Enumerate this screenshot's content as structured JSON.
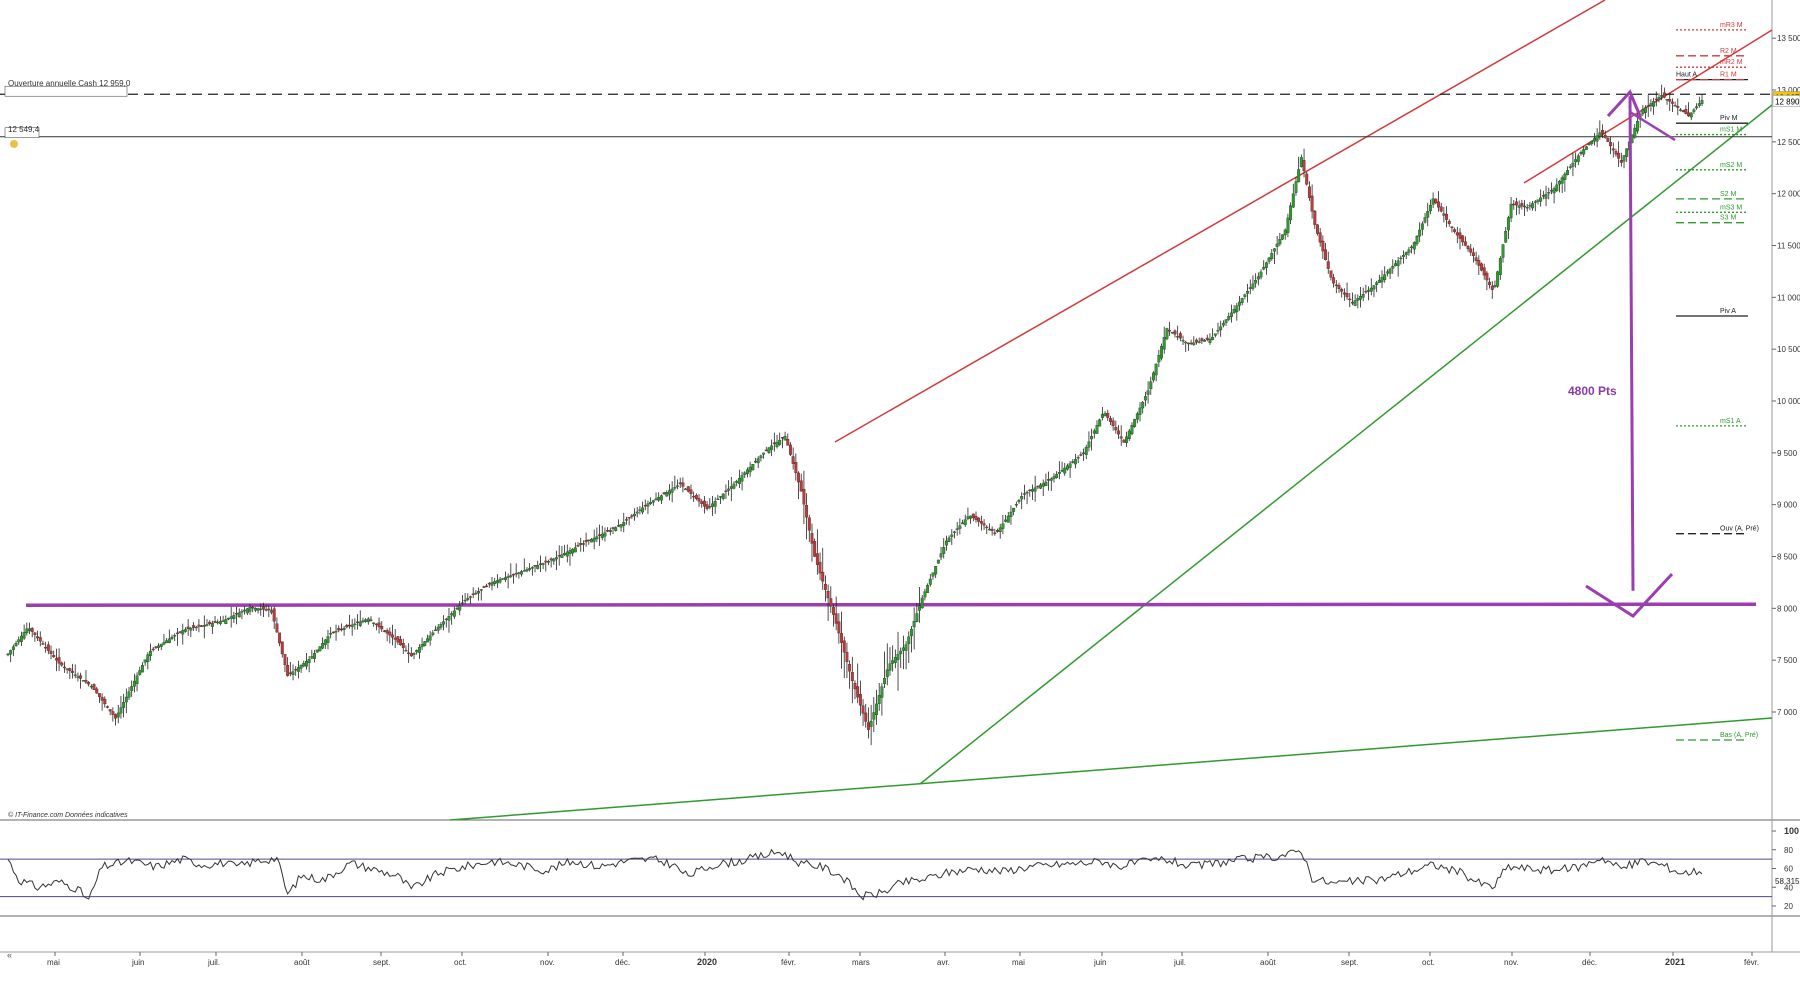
{
  "chart_data": [
    {
      "type": "candlestick",
      "title": "",
      "xlabel": "",
      "ylabel": "",
      "ylim": [
        6550,
        13650
      ],
      "x_tick_labels": [
        "mai",
        "juin",
        "juil.",
        "août",
        "sept.",
        "oct.",
        "nov.",
        "déc.",
        "2020",
        "févr.",
        "mars",
        "avr.",
        "mai",
        "juin",
        "juil.",
        "août",
        "sept.",
        "oct.",
        "nov.",
        "déc.",
        "2021",
        "févr."
      ],
      "y_tick_labels": [
        "7 000",
        "7 500",
        "8 000",
        "8 500",
        "9 000",
        "9 500",
        "10 000",
        "10 500",
        "11 000",
        "11 500",
        "12 000",
        "12 500",
        "13 000",
        "13 500"
      ],
      "y_tick_values": [
        7000,
        7500,
        8000,
        8500,
        9000,
        9500,
        10000,
        10500,
        11000,
        11500,
        12000,
        12500,
        13000,
        13500
      ],
      "price_key_points": [
        {
          "x": 0,
          "y": 7560
        },
        {
          "x": 15,
          "y": 7820
        },
        {
          "x": 38,
          "y": 7470
        },
        {
          "x": 62,
          "y": 7250
        },
        {
          "x": 80,
          "y": 6940
        },
        {
          "x": 105,
          "y": 7580
        },
        {
          "x": 130,
          "y": 7790
        },
        {
          "x": 160,
          "y": 7880
        },
        {
          "x": 180,
          "y": 8010
        },
        {
          "x": 196,
          "y": 7980
        },
        {
          "x": 208,
          "y": 7350
        },
        {
          "x": 225,
          "y": 7520
        },
        {
          "x": 240,
          "y": 7760
        },
        {
          "x": 268,
          "y": 7900
        },
        {
          "x": 288,
          "y": 7700
        },
        {
          "x": 300,
          "y": 7540
        },
        {
          "x": 320,
          "y": 7820
        },
        {
          "x": 340,
          "y": 8080
        },
        {
          "x": 360,
          "y": 8250
        },
        {
          "x": 385,
          "y": 8370
        },
        {
          "x": 405,
          "y": 8470
        },
        {
          "x": 430,
          "y": 8640
        },
        {
          "x": 455,
          "y": 8800
        },
        {
          "x": 475,
          "y": 9000
        },
        {
          "x": 500,
          "y": 9200
        },
        {
          "x": 520,
          "y": 8960
        },
        {
          "x": 540,
          "y": 9200
        },
        {
          "x": 565,
          "y": 9540
        },
        {
          "x": 578,
          "y": 9660
        },
        {
          "x": 590,
          "y": 9130
        },
        {
          "x": 600,
          "y": 8500
        },
        {
          "x": 615,
          "y": 7900
        },
        {
          "x": 628,
          "y": 7300
        },
        {
          "x": 640,
          "y": 6830
        },
        {
          "x": 655,
          "y": 7450
        },
        {
          "x": 668,
          "y": 7650
        },
        {
          "x": 680,
          "y": 8100
        },
        {
          "x": 698,
          "y": 8650
        },
        {
          "x": 715,
          "y": 8900
        },
        {
          "x": 735,
          "y": 8720
        },
        {
          "x": 755,
          "y": 9100
        },
        {
          "x": 775,
          "y": 9240
        },
        {
          "x": 800,
          "y": 9500
        },
        {
          "x": 815,
          "y": 9900
        },
        {
          "x": 830,
          "y": 9600
        },
        {
          "x": 848,
          "y": 10100
        },
        {
          "x": 862,
          "y": 10700
        },
        {
          "x": 878,
          "y": 10550
        },
        {
          "x": 895,
          "y": 10600
        },
        {
          "x": 910,
          "y": 10850
        },
        {
          "x": 930,
          "y": 11200
        },
        {
          "x": 950,
          "y": 11650
        },
        {
          "x": 962,
          "y": 12350
        },
        {
          "x": 972,
          "y": 11700
        },
        {
          "x": 985,
          "y": 11150
        },
        {
          "x": 1000,
          "y": 10950
        },
        {
          "x": 1015,
          "y": 11100
        },
        {
          "x": 1030,
          "y": 11300
        },
        {
          "x": 1045,
          "y": 11500
        },
        {
          "x": 1060,
          "y": 11950
        },
        {
          "x": 1075,
          "y": 11650
        },
        {
          "x": 1090,
          "y": 11400
        },
        {
          "x": 1105,
          "y": 11050
        },
        {
          "x": 1118,
          "y": 11900
        },
        {
          "x": 1130,
          "y": 11870
        },
        {
          "x": 1150,
          "y": 12050
        },
        {
          "x": 1170,
          "y": 12400
        },
        {
          "x": 1185,
          "y": 12600
        },
        {
          "x": 1200,
          "y": 12300
        },
        {
          "x": 1215,
          "y": 12800
        },
        {
          "x": 1230,
          "y": 12950
        },
        {
          "x": 1240,
          "y": 12850
        },
        {
          "x": 1250,
          "y": 12750
        },
        {
          "x": 1260,
          "y": 12900
        }
      ],
      "price_points_note": "",
      "horizontal_levels": [
        {
          "name": "Ouverture annuelle Cash",
          "value": 12959.0,
          "label": "Ouverture annuelle Cash 12 959,0",
          "color": "#222222",
          "style": "dashed"
        },
        {
          "name": "12 549,4",
          "value": 12549.4,
          "label": "12 549,4",
          "color": "#222222",
          "style": "solid"
        },
        {
          "name": "purple support",
          "value": 8030,
          "color": "#9b3fb0",
          "style": "solid"
        }
      ],
      "pivot_labels": [
        {
          "label": "mR3 M",
          "value": 13580,
          "color": "#d23a3a"
        },
        {
          "label": "R2 M",
          "value": 13330,
          "color": "#d23a3a"
        },
        {
          "label": "mR2 M",
          "value": 13220,
          "color": "#d23a3a"
        },
        {
          "label": "Haut A",
          "value": 13100,
          "color": "#222222"
        },
        {
          "label": "R1 M",
          "value": 13100,
          "color": "#d23a3a"
        },
        {
          "label": "Piv M",
          "value": 12680,
          "color": "#222222"
        },
        {
          "label": "mS1 M",
          "value": 12570,
          "color": "#2f9a2f"
        },
        {
          "label": "mS2 M",
          "value": 12230,
          "color": "#2f9a2f"
        },
        {
          "label": "S2 M",
          "value": 11950,
          "color": "#2f9a2f"
        },
        {
          "label": "mS3 M",
          "value": 11820,
          "color": "#2f9a2f"
        },
        {
          "label": "S3 M",
          "value": 11720,
          "color": "#2f9a2f"
        },
        {
          "label": "Piv A",
          "value": 10820,
          "color": "#222222"
        },
        {
          "label": "mS1 A",
          "value": 9760,
          "color": "#2f9a2f"
        },
        {
          "label": "Ouv (A. Pré)",
          "value": 8720,
          "color": "#222222"
        },
        {
          "label": "Bas (A. Pré)",
          "value": 6730,
          "color": "#2f9a2f"
        }
      ],
      "price_tags": [
        {
          "text": "12 927",
          "value": 12927,
          "bg": "#f5c400"
        },
        {
          "text": "12 890",
          "value": 12890,
          "bg": "#ffffff"
        }
      ],
      "annotation": {
        "text": "4800 Pts",
        "color": "#8a3aa5",
        "from_value": 12940,
        "to_value": 8170
      },
      "trendlines": [
        {
          "name": "upper red channel",
          "color": "#d23a3a"
        },
        {
          "name": "recent red line",
          "color": "#d23a3a"
        },
        {
          "name": "main green support",
          "color": "#2f9a2f"
        },
        {
          "name": "long-term green",
          "color": "#2f9a2f"
        }
      ],
      "footer_text": "© IT-Finance.com  Données indicatives",
      "colors": {
        "up": "#2e9b2e",
        "down": "#c0393a",
        "purple": "#9b3fb0"
      }
    },
    {
      "type": "line",
      "title": "",
      "ylim": [
        10,
        100
      ],
      "y_tick_labels": [
        "20",
        "40",
        "60",
        "80",
        "100"
      ],
      "y_tick_values": [
        20,
        40,
        60,
        80,
        100
      ],
      "reference_lines": [
        70,
        30
      ],
      "last_value": "58,315",
      "rsi_key_points": [
        {
          "x": 0,
          "y": 70
        },
        {
          "x": 8,
          "y": 48
        },
        {
          "x": 22,
          "y": 40
        },
        {
          "x": 38,
          "y": 46
        },
        {
          "x": 52,
          "y": 38
        },
        {
          "x": 60,
          "y": 26
        },
        {
          "x": 70,
          "y": 62
        },
        {
          "x": 90,
          "y": 68
        },
        {
          "x": 110,
          "y": 62
        },
        {
          "x": 130,
          "y": 70
        },
        {
          "x": 145,
          "y": 64
        },
        {
          "x": 160,
          "y": 66
        },
        {
          "x": 170,
          "y": 62
        },
        {
          "x": 185,
          "y": 68
        },
        {
          "x": 200,
          "y": 71
        },
        {
          "x": 208,
          "y": 32
        },
        {
          "x": 218,
          "y": 52
        },
        {
          "x": 235,
          "y": 48
        },
        {
          "x": 255,
          "y": 66
        },
        {
          "x": 275,
          "y": 58
        },
        {
          "x": 290,
          "y": 52
        },
        {
          "x": 300,
          "y": 38
        },
        {
          "x": 320,
          "y": 55
        },
        {
          "x": 340,
          "y": 62
        },
        {
          "x": 360,
          "y": 68
        },
        {
          "x": 380,
          "y": 64
        },
        {
          "x": 400,
          "y": 58
        },
        {
          "x": 420,
          "y": 68
        },
        {
          "x": 440,
          "y": 62
        },
        {
          "x": 460,
          "y": 68
        },
        {
          "x": 480,
          "y": 70
        },
        {
          "x": 495,
          "y": 64
        },
        {
          "x": 505,
          "y": 52
        },
        {
          "x": 525,
          "y": 64
        },
        {
          "x": 545,
          "y": 68
        },
        {
          "x": 565,
          "y": 75
        },
        {
          "x": 575,
          "y": 78
        },
        {
          "x": 590,
          "y": 65
        },
        {
          "x": 605,
          "y": 62
        },
        {
          "x": 620,
          "y": 52
        },
        {
          "x": 635,
          "y": 30
        },
        {
          "x": 650,
          "y": 34
        },
        {
          "x": 665,
          "y": 45
        },
        {
          "x": 680,
          "y": 48
        },
        {
          "x": 700,
          "y": 56
        },
        {
          "x": 720,
          "y": 60
        },
        {
          "x": 740,
          "y": 57
        },
        {
          "x": 760,
          "y": 62
        },
        {
          "x": 780,
          "y": 64
        },
        {
          "x": 800,
          "y": 66
        },
        {
          "x": 815,
          "y": 68
        },
        {
          "x": 825,
          "y": 62
        },
        {
          "x": 840,
          "y": 66
        },
        {
          "x": 860,
          "y": 70
        },
        {
          "x": 880,
          "y": 62
        },
        {
          "x": 900,
          "y": 66
        },
        {
          "x": 920,
          "y": 70
        },
        {
          "x": 940,
          "y": 72
        },
        {
          "x": 955,
          "y": 76
        },
        {
          "x": 962,
          "y": 80
        },
        {
          "x": 970,
          "y": 50
        },
        {
          "x": 985,
          "y": 44
        },
        {
          "x": 1000,
          "y": 46
        },
        {
          "x": 1020,
          "y": 48
        },
        {
          "x": 1040,
          "y": 56
        },
        {
          "x": 1060,
          "y": 64
        },
        {
          "x": 1080,
          "y": 56
        },
        {
          "x": 1095,
          "y": 44
        },
        {
          "x": 1105,
          "y": 40
        },
        {
          "x": 1115,
          "y": 62
        },
        {
          "x": 1130,
          "y": 60
        },
        {
          "x": 1150,
          "y": 58
        },
        {
          "x": 1170,
          "y": 62
        },
        {
          "x": 1185,
          "y": 72
        },
        {
          "x": 1200,
          "y": 60
        },
        {
          "x": 1215,
          "y": 68
        },
        {
          "x": 1230,
          "y": 64
        },
        {
          "x": 1245,
          "y": 55
        },
        {
          "x": 1260,
          "y": 58
        }
      ]
    }
  ]
}
